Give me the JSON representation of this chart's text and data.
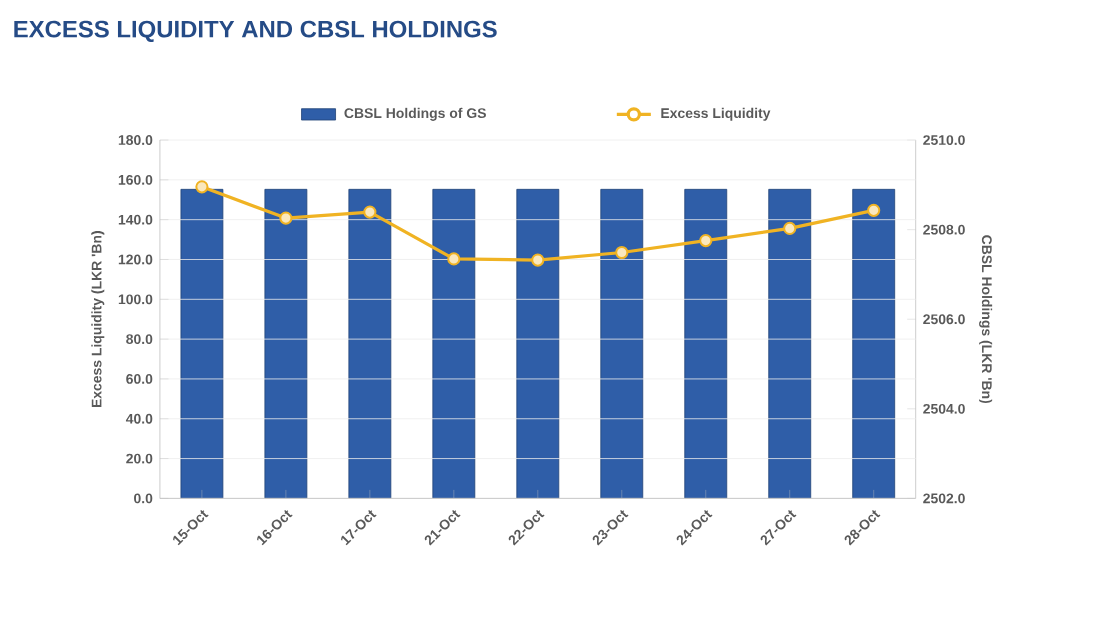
{
  "chart_data": {
    "type": "bar",
    "title": "EXCESS LIQUIDITY AND CBSL HOLDINGS",
    "categories": [
      "15-Oct",
      "16-Oct",
      "17-Oct",
      "21-Oct",
      "22-Oct",
      "23-Oct",
      "24-Oct",
      "27-Oct",
      "28-Oct"
    ],
    "series": [
      {
        "name": "CBSL Holdings of GS",
        "axis": "y2",
        "color": "#2f5ea8",
        "values": [
          2508.9,
          2508.9,
          2508.9,
          2508.9,
          2508.9,
          2508.9,
          2508.9,
          2508.9,
          2508.9
        ]
      },
      {
        "name": "Excess Liquidity",
        "type": "line",
        "axis": "y",
        "color": "#f0b323",
        "marker": "circle",
        "values": [
          156.5,
          140.8,
          143.8,
          120.3,
          119.7,
          123.5,
          129.5,
          135.6,
          144.7
        ]
      }
    ],
    "ylabel": "Excess Liquidity (LKR 'Bn)",
    "y2label": "CBSL Holdings (LKR 'Bn)",
    "ylim": [
      0,
      180
    ],
    "yticks": [
      {
        "value": 0,
        "label": "0.0"
      },
      {
        "value": 20,
        "label": "20.0"
      },
      {
        "value": 40,
        "label": "40.0"
      },
      {
        "value": 60,
        "label": "60.0"
      },
      {
        "value": 80,
        "label": "80.0"
      },
      {
        "value": 100,
        "label": "100.0"
      },
      {
        "value": 120,
        "label": "120.0"
      },
      {
        "value": 140,
        "label": "140.0"
      },
      {
        "value": 160,
        "label": "160.0"
      },
      {
        "value": 180,
        "label": "180.0"
      }
    ],
    "y2lim": [
      2502,
      2510
    ],
    "y2ticks": [
      {
        "value": 2502,
        "label": "2502.0"
      },
      {
        "value": 2504,
        "label": "2504.0"
      },
      {
        "value": 2506,
        "label": "2506.0"
      },
      {
        "value": 2508,
        "label": "2508.0"
      },
      {
        "value": 2510,
        "label": "2510.0"
      }
    ],
    "grid": "y",
    "legend": "top"
  }
}
